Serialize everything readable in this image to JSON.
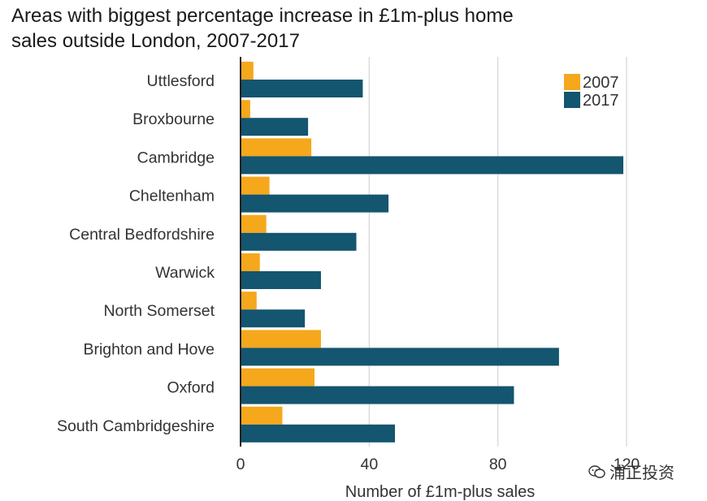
{
  "chart_data": {
    "type": "bar",
    "orientation": "horizontal",
    "title_lines": [
      "Areas with biggest percentage increase in £1m-plus home",
      "sales outside London, 2007-2017"
    ],
    "xlabel": "Number of £1m-plus sales",
    "ylabel": "",
    "xlim": [
      0,
      120
    ],
    "xticks": [
      0,
      40,
      80,
      120
    ],
    "grid": true,
    "legend_position": "top-right",
    "categories": [
      "Uttlesford",
      "Broxbourne",
      "Cambridge",
      "Cheltenham",
      "Central Bedfordshire",
      "Warwick",
      "North Somerset",
      "Brighton and Hove",
      "Oxford",
      "South Cambridgeshire"
    ],
    "series": [
      {
        "name": "2007",
        "color": "#f5a81c",
        "values": [
          4,
          3,
          22,
          9,
          8,
          6,
          5,
          25,
          23,
          13
        ]
      },
      {
        "name": "2017",
        "color": "#14556f",
        "values": [
          38,
          21,
          119,
          46,
          36,
          25,
          20,
          99,
          85,
          48
        ]
      }
    ]
  },
  "watermark": {
    "text": "浦正投资",
    "icon": "wechat-icon"
  }
}
